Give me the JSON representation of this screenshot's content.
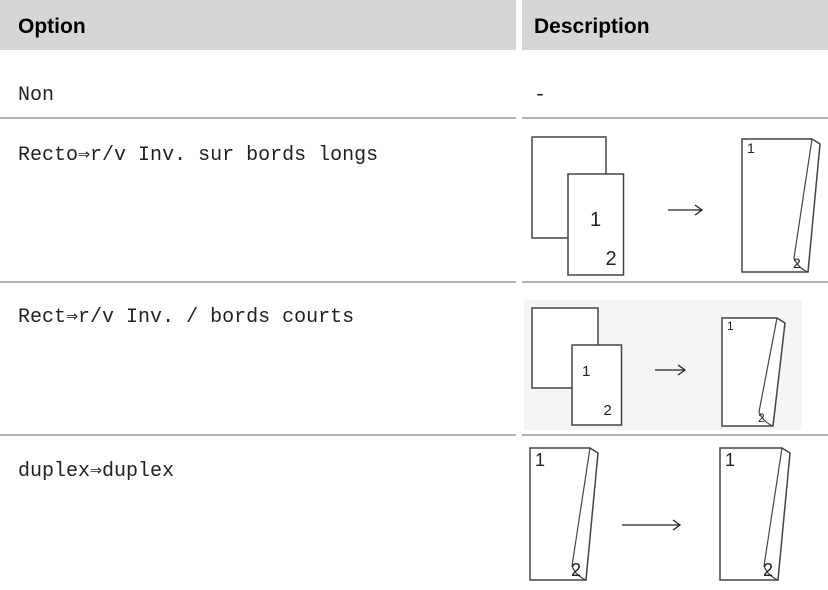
{
  "table": {
    "headers": [
      "Option",
      "Description"
    ],
    "rows": [
      {
        "option": "Non",
        "description": "-"
      },
      {
        "option": "Recto⇒r/v Inv. sur bords longs"
      },
      {
        "option": "Rect⇒r/v Inv. / bords courts"
      },
      {
        "option": "duplex⇒duplex"
      }
    ]
  },
  "figure_labels": [
    "1",
    "2"
  ]
}
